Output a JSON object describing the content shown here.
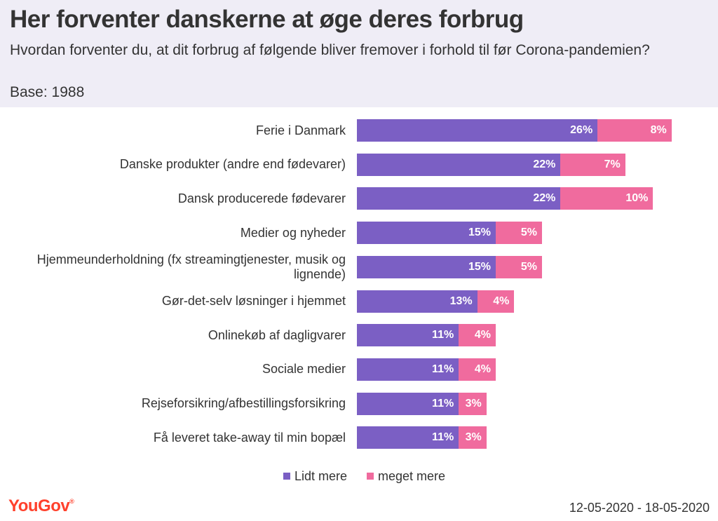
{
  "header": {
    "title": "Her forventer danskerne at øge deres forbrug",
    "subtitle": "Hvordan forventer du, at dit forbrug af følgende bliver fremover i forhold til før Corona-pandemien?",
    "base": "Base: 1988"
  },
  "colors": {
    "header_bg": "#efedf6",
    "series1": "#7b5fc4",
    "series2": "#f06b9e",
    "brand": "#ff412c"
  },
  "chart_data": {
    "type": "bar",
    "orientation": "horizontal",
    "stacked": true,
    "categories": [
      "Ferie i Danmark",
      "Danske produkter (andre end fødevarer)",
      "Dansk producerede fødevarer",
      "Medier og nyheder",
      "Hjemmeunderholdning (fx streamingtjenester, musik og lignende)",
      "Gør-det-selv løsninger i hjemmet",
      "Onlinekøb af dagligvarer",
      "Sociale medier",
      "Rejseforsikring/afbestillingsforsikring",
      "Få leveret take-away til min bopæl"
    ],
    "series": [
      {
        "name": "Lidt mere",
        "color": "#7b5fc4",
        "values": [
          26,
          22,
          22,
          15,
          15,
          13,
          11,
          11,
          11,
          11
        ]
      },
      {
        "name": "meget mere",
        "color": "#f06b9e",
        "values": [
          8,
          7,
          10,
          5,
          5,
          4,
          4,
          4,
          3,
          3
        ]
      }
    ],
    "value_suffix": "%",
    "legend_position": "bottom-center"
  },
  "footer": {
    "logo": "YouGov",
    "date_range": "12-05-2020 - 18-05-2020"
  }
}
